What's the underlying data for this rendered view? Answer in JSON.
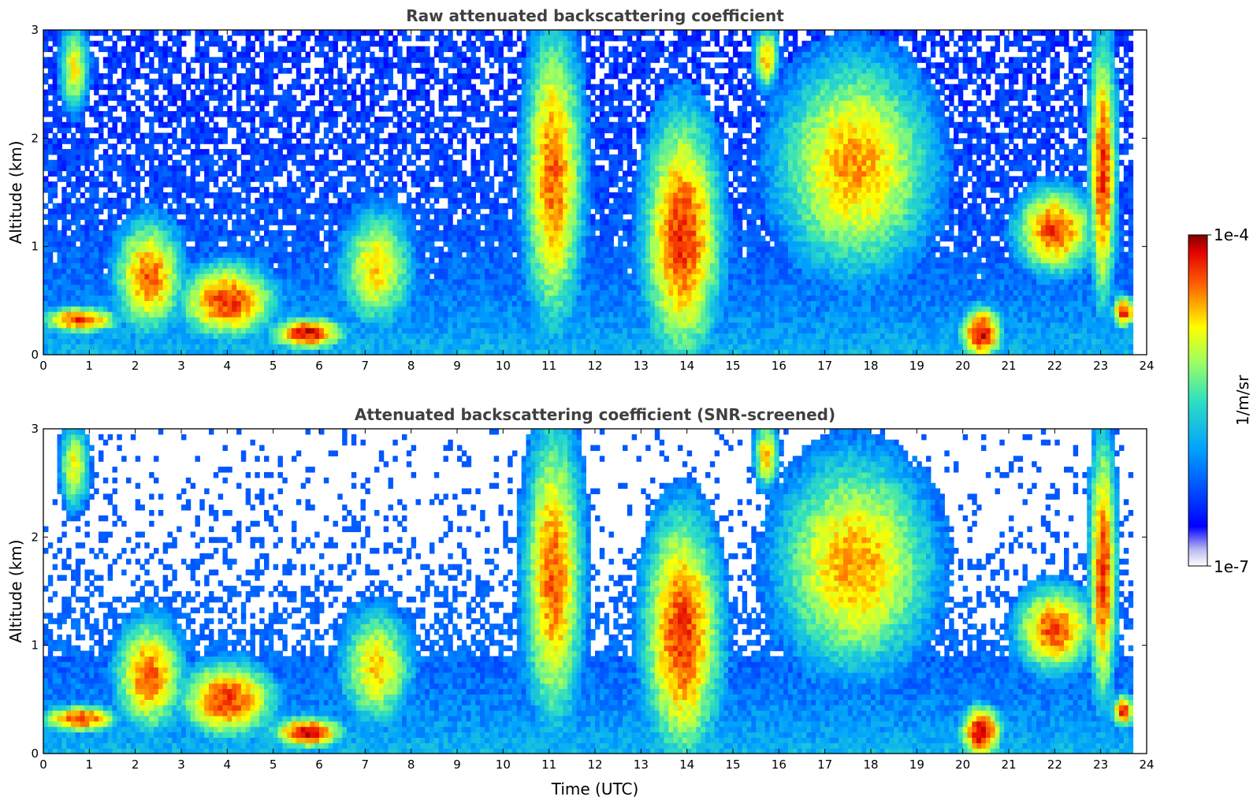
{
  "chart_data": [
    {
      "type": "heatmap",
      "title": "Raw attenuated backscattering coefficient",
      "xlabel": "",
      "ylabel": "Altitude (km)",
      "xlim": [
        0,
        24
      ],
      "ylim": [
        0,
        3
      ],
      "xticks": [
        "0",
        "1",
        "2",
        "3",
        "4",
        "5",
        "6",
        "7",
        "8",
        "9",
        "10",
        "11",
        "12",
        "13",
        "14",
        "15",
        "16",
        "17",
        "18",
        "19",
        "20",
        "21",
        "22",
        "23",
        "24"
      ],
      "yticks": [
        "0",
        "1",
        "2",
        "3"
      ],
      "data_end_hour": 23.7,
      "colormap": "jet",
      "features": [
        {
          "t": [
            0.4,
            0.95
          ],
          "z": [
            2.3,
            3.0
          ],
          "level": 0.72
        },
        {
          "t": [
            0.0,
            1.6
          ],
          "z": [
            0.25,
            0.4
          ],
          "level": 0.9
        },
        {
          "t": [
            1.6,
            3.0
          ],
          "z": [
            0.25,
            1.2
          ],
          "level": 0.85
        },
        {
          "t": [
            3.0,
            5.0
          ],
          "z": [
            0.2,
            0.8
          ],
          "level": 0.9
        },
        {
          "t": [
            5.0,
            6.5
          ],
          "z": [
            0.1,
            0.3
          ],
          "level": 0.95
        },
        {
          "t": [
            6.5,
            8.0
          ],
          "z": [
            0.3,
            1.3
          ],
          "level": 0.75
        },
        {
          "t": [
            10.5,
            11.7
          ],
          "z": [
            0.3,
            3.0
          ],
          "level": 0.85
        },
        {
          "t": [
            13.1,
            14.7
          ],
          "z": [
            0.0,
            2.2
          ],
          "level": 0.9
        },
        {
          "t": [
            15.5,
            15.95
          ],
          "z": [
            2.5,
            3.0
          ],
          "level": 0.78
        },
        {
          "t": [
            16.0,
            19.3
          ],
          "z": [
            0.8,
            2.7
          ],
          "level": 0.8
        },
        {
          "t": [
            20.0,
            20.8
          ],
          "z": [
            0.0,
            0.4
          ],
          "level": 0.97
        },
        {
          "t": [
            21.2,
            22.8
          ],
          "z": [
            0.8,
            1.5
          ],
          "level": 0.88
        },
        {
          "t": [
            22.8,
            23.3
          ],
          "z": [
            0.5,
            2.9
          ],
          "level": 0.9
        },
        {
          "t": [
            23.3,
            23.7
          ],
          "z": [
            0.3,
            0.5
          ],
          "level": 0.92
        }
      ]
    },
    {
      "type": "heatmap",
      "title": "Attenuated backscattering coefficient (SNR-screened)",
      "xlabel": "Time (UTC)",
      "ylabel": "Altitude (km)",
      "xlim": [
        0,
        24
      ],
      "ylim": [
        0,
        3
      ],
      "xticks": [
        "0",
        "1",
        "2",
        "3",
        "4",
        "5",
        "6",
        "7",
        "8",
        "9",
        "10",
        "11",
        "12",
        "13",
        "14",
        "15",
        "16",
        "17",
        "18",
        "19",
        "20",
        "21",
        "22",
        "23",
        "24"
      ],
      "yticks": [
        "0",
        "1",
        "2",
        "3"
      ],
      "data_end_hour": 23.7,
      "colormap": "jet",
      "note_values_below_threshold": "white"
    }
  ],
  "colorbar": {
    "max_label": "1e-4",
    "min_label": "1e-7",
    "unit_label": "1/m/sr"
  }
}
